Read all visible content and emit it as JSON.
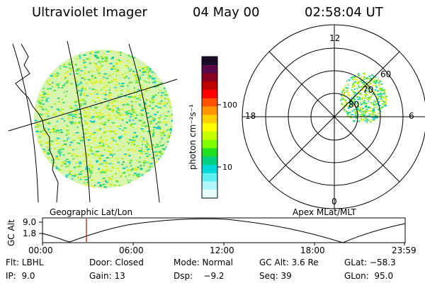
{
  "header": {
    "title": "Ultraviolet Imager",
    "date": "04 May 00",
    "time": "02:58:04 UT"
  },
  "left_panel": {
    "caption": "Geographic Lat/Lon"
  },
  "colorbar": {
    "unit_label": "photon cm⁻²s⁻¹",
    "ticks": [
      "100",
      "10"
    ],
    "colors": [
      "#1a0a2a",
      "#5a0a4a",
      "#8a0020",
      "#c00000",
      "#ff0000",
      "#ff5000",
      "#ff9800",
      "#ffd000",
      "#ffff00",
      "#c8ff00",
      "#80ff00",
      "#20e020",
      "#00d080",
      "#00d8d8",
      "#60f0f0",
      "#b0f8f8",
      "#e8ffff"
    ]
  },
  "polar_panel": {
    "caption": "Apex MLat/MLT",
    "mlt_labels": {
      "top": "12",
      "bottom": "0",
      "left": "18",
      "right": "6"
    },
    "lat_labels": [
      "60",
      "70",
      "80"
    ]
  },
  "altitude_plot": {
    "ylabel": "GC Alt",
    "yticks": [
      "9.0",
      "1.8"
    ],
    "xticks": [
      "00:00",
      "06:00",
      "12:00",
      "18:00",
      "23:59"
    ]
  },
  "info": {
    "row1": {
      "flt": "Flt: LBHL",
      "door": "Door: Closed",
      "mode": "Mode: Normal",
      "gcalt": "GC Alt: 3.6 Re",
      "glat": "GLat: −58.3"
    },
    "row2": {
      "ip": "IP:  9.0",
      "gain": "Gain: 13",
      "dsp": "Dsp:    −9.2",
      "seq": "Seq: 39",
      "glon": "GLon:  95.0"
    }
  }
}
